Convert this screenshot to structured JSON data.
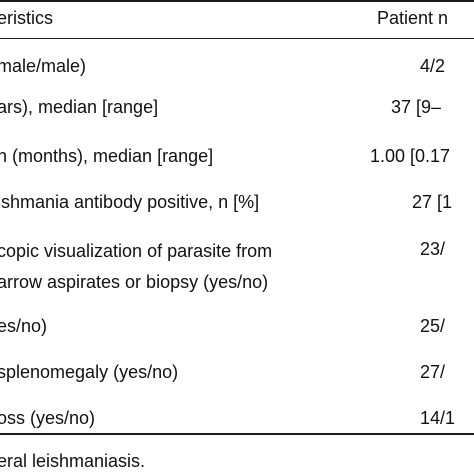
{
  "table": {
    "header": {
      "characteristic": "eristics",
      "patient": "Patient n"
    },
    "rows": [
      {
        "label": "male/male)",
        "value": "4/2"
      },
      {
        "label": "ars), median [range]",
        "value": "37 [9–"
      },
      {
        "label": "n (months), median [range]",
        "value": "1.00 [0.17"
      },
      {
        "label": "ishmania antibody positive, n [%]",
        "value": "27 [1"
      },
      {
        "label": "copic visualization of parasite from\narrow aspirates or biopsy (yes/no)",
        "value": "23/"
      },
      {
        "label": "es/no)",
        "value": "25/"
      },
      {
        "label": "splenomegaly (yes/no)",
        "value": "27/"
      },
      {
        "label": "oss (yes/no)",
        "value": "14/1"
      }
    ]
  },
  "footnote": "eral leishmaniasis."
}
